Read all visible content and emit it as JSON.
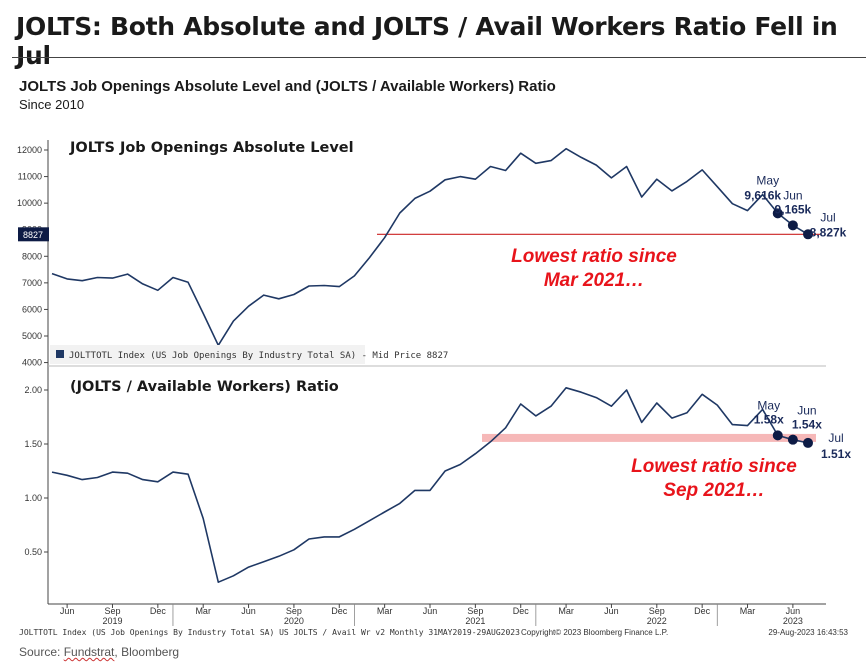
{
  "headline": "JOLTS: Both Absolute and JOLTS / Avail Workers Ratio Fell in Jul",
  "subtitle": "JOLTS Job Openings Absolute Level and (JOLTS / Available Workers) Ratio",
  "since": "Since 2010",
  "source": {
    "prefix": "Source: ",
    "a": "Fundstrat",
    "sep": ", ",
    "b": "Bloomberg"
  },
  "footer": {
    "left": "JOLTTOTL Index (US Job Openings By Industry Total SA) US JOLTS / Avail Wr v2  Monthly 31MAY2019-29AUG2023",
    "center": "Copyright© 2023 Bloomberg Finance L.P.",
    "right": "29-Aug-2023 16:43:53"
  },
  "colors": {
    "line": "#1f3864",
    "marker": "#0d1b45",
    "annotation_red": "#e8141b",
    "ref_line": "#cc2222",
    "ref_band": "#f6b8b8"
  },
  "chart_data": [
    {
      "type": "line",
      "title": "JOLTS Job Openings Absolute Level",
      "legend": "JOLTTOTL Index (US Job Openings By Industry Total SA) - Mid Price 8827",
      "legend_placement": "bottom-left",
      "ylim": [
        4000,
        12600
      ],
      "yticks": [
        4000,
        5000,
        6000,
        7000,
        8000,
        9000,
        10000,
        11000,
        12000
      ],
      "last_value_tag": "8827",
      "grid": false,
      "x_start": "2019-05",
      "series": [
        {
          "values": [
            7350,
            7150,
            7080,
            7200,
            7180,
            7330,
            6960,
            6720,
            7200,
            7020,
            5850,
            4650,
            5560,
            6120,
            6540,
            6400,
            6560,
            6880,
            6900,
            6860,
            7260,
            7950,
            8700,
            9630,
            10180,
            10450,
            10880,
            11000,
            10900,
            11380,
            11230,
            11880,
            11500,
            11600,
            12050,
            11720,
            11430,
            10950,
            11380,
            10230,
            10900,
            10460,
            10820,
            11250,
            10620,
            9980,
            9720,
            10320,
            9616,
            9165,
            8827
          ]
        }
      ],
      "reference_line": 8827,
      "annotations": [
        {
          "label": "May",
          "value_label": "9,616k",
          "x": "2023-05",
          "y": 9616
        },
        {
          "label": "Jun",
          "value_label": "9,165k",
          "x": "2023-06",
          "y": 9165
        },
        {
          "label": "Jul",
          "value_label": "8,827k",
          "x": "2023-07",
          "y": 8827
        }
      ],
      "callout": [
        "Lowest ratio since",
        "Mar 2021…"
      ]
    },
    {
      "type": "line",
      "title": "(JOLTS / Available Workers) Ratio",
      "ylim": [
        0.0,
        2.12
      ],
      "yticks": [
        0.5,
        1.0,
        1.5,
        2.0
      ],
      "ytick_labels": [
        "0.50",
        "1.00",
        "1.50",
        "2.00"
      ],
      "grid": false,
      "x_start": "2019-05",
      "series": [
        {
          "values": [
            1.24,
            1.21,
            1.17,
            1.19,
            1.24,
            1.23,
            1.17,
            1.15,
            1.24,
            1.22,
            0.81,
            0.22,
            0.28,
            0.36,
            0.41,
            0.46,
            0.52,
            0.62,
            0.64,
            0.64,
            0.71,
            0.79,
            0.87,
            0.95,
            1.07,
            1.07,
            1.25,
            1.31,
            1.41,
            1.52,
            1.65,
            1.87,
            1.76,
            1.85,
            2.02,
            1.98,
            1.93,
            1.85,
            2.0,
            1.7,
            1.88,
            1.74,
            1.79,
            1.96,
            1.86,
            1.68,
            1.67,
            1.82,
            1.58,
            1.54,
            1.51
          ]
        }
      ],
      "reference_band": 1.51,
      "annotations": [
        {
          "label": "May",
          "value_label": "1.58x",
          "x": "2023-05",
          "y": 1.58
        },
        {
          "label": "Jun",
          "value_label": "1.54x",
          "x": "2023-06",
          "y": 1.54
        },
        {
          "label": "Jul",
          "value_label": "1.51x",
          "x": "2023-07",
          "y": 1.51
        }
      ],
      "callout": [
        "Lowest ratio since",
        "Sep 2021…"
      ]
    }
  ],
  "x_axis": {
    "months": [
      "Jun",
      "Sep",
      "Dec",
      "Mar",
      "Jun",
      "Sep",
      "Dec",
      "Mar",
      "Jun",
      "Sep",
      "Dec",
      "Mar",
      "Jun",
      "Sep",
      "Dec",
      "Mar",
      "Jun"
    ],
    "years": [
      "2019",
      "2020",
      "2021",
      "2022",
      "2023"
    ]
  }
}
